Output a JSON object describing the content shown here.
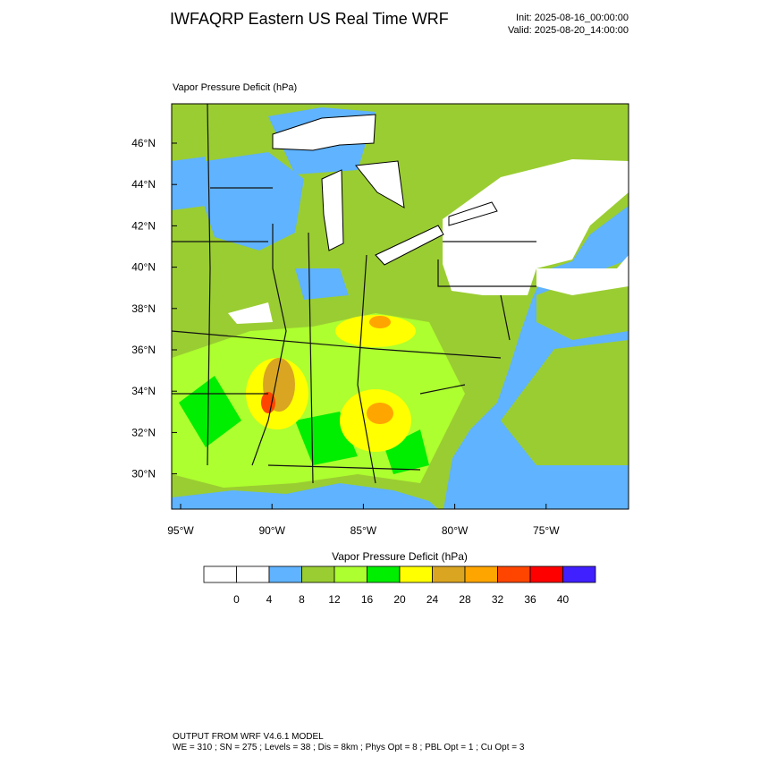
{
  "header": {
    "title": "IWFAQRP Eastern US Real Time WRF",
    "init": "Init: 2025-08-16_00:00:00",
    "valid": "Valid: 2025-08-20_14:00:00"
  },
  "map": {
    "field_label": "Vapor Pressure Deficit   (hPa)",
    "lat_labels": [
      "46°N",
      "44°N",
      "42°N",
      "40°N",
      "38°N",
      "36°N",
      "34°N",
      "32°N",
      "30°N"
    ],
    "lon_labels": [
      "95°W",
      "90°W",
      "85°W",
      "80°W",
      "75°W"
    ]
  },
  "colorbar": {
    "title": "Vapor Pressure Deficit (hPa)",
    "colors": [
      "#ffffff",
      "#ffffff",
      "#5fb3ff",
      "#9acd32",
      "#adff2f",
      "#00ee00",
      "#ffff00",
      "#daa520",
      "#ffa500",
      "#ff4500",
      "#ff0000",
      "#4020ff"
    ],
    "levels": [
      0,
      4,
      8,
      12,
      16,
      20,
      24,
      28,
      32,
      36,
      40
    ]
  },
  "footer": {
    "line1": "OUTPUT FROM WRF V4.6.1 MODEL",
    "line2": "WE = 310 ; SN = 275 ; Levels = 38 ; Dis = 8km ; Phys Opt = 8 ; PBL Opt = 1 ; Cu Opt = 3"
  }
}
